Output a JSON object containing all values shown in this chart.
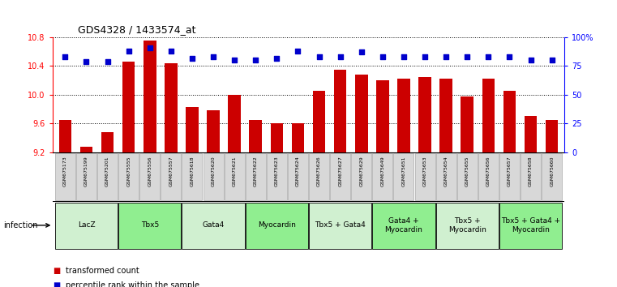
{
  "title": "GDS4328 / 1433574_at",
  "samples": [
    "GSM675173",
    "GSM675199",
    "GSM675201",
    "GSM675555",
    "GSM675556",
    "GSM675557",
    "GSM675618",
    "GSM675620",
    "GSM675621",
    "GSM675622",
    "GSM675623",
    "GSM675624",
    "GSM675626",
    "GSM675627",
    "GSM675629",
    "GSM675649",
    "GSM675651",
    "GSM675653",
    "GSM675654",
    "GSM675655",
    "GSM675656",
    "GSM675657",
    "GSM675658",
    "GSM675660"
  ],
  "bar_values": [
    9.65,
    9.28,
    9.48,
    10.46,
    10.76,
    10.44,
    9.83,
    9.78,
    10.0,
    9.65,
    9.6,
    9.6,
    10.05,
    10.35,
    10.28,
    10.2,
    10.22,
    10.25,
    10.22,
    9.98,
    10.22,
    10.05,
    9.7,
    9.65
  ],
  "percentile_values": [
    83,
    79,
    79,
    88,
    91,
    88,
    82,
    83,
    80,
    80,
    82,
    88,
    83,
    83,
    87,
    83,
    83,
    83,
    83,
    83,
    83,
    83,
    80,
    80
  ],
  "ylim_left": [
    9.2,
    10.8
  ],
  "ylim_right": [
    0,
    100
  ],
  "yticks_left": [
    9.2,
    9.6,
    10.0,
    10.4,
    10.8
  ],
  "yticks_right": [
    0,
    25,
    50,
    75,
    100
  ],
  "ytick_labels_right": [
    "0",
    "25",
    "50",
    "75",
    "100%"
  ],
  "bar_color": "#CC0000",
  "percentile_color": "#0000CC",
  "groups": [
    {
      "label": "LacZ",
      "start": 0,
      "end": 2,
      "color": "#d0f0d0"
    },
    {
      "label": "Tbx5",
      "start": 3,
      "end": 5,
      "color": "#90ee90"
    },
    {
      "label": "Gata4",
      "start": 6,
      "end": 8,
      "color": "#d0f0d0"
    },
    {
      "label": "Myocardin",
      "start": 9,
      "end": 11,
      "color": "#90ee90"
    },
    {
      "label": "Tbx5 + Gata4",
      "start": 12,
      "end": 14,
      "color": "#d0f0d0"
    },
    {
      "label": "Gata4 +\nMyocardin",
      "start": 15,
      "end": 17,
      "color": "#90ee90"
    },
    {
      "label": "Tbx5 +\nMyocardin",
      "start": 18,
      "end": 20,
      "color": "#d0f0d0"
    },
    {
      "label": "Tbx5 + Gata4 +\nMyocardin",
      "start": 21,
      "end": 23,
      "color": "#90ee90"
    }
  ],
  "infection_label": "infection",
  "legend_bar_label": "transformed count",
  "legend_pct_label": "percentile rank within the sample",
  "background_color": "#ffffff",
  "sample_box_color": "#d8d8d8",
  "sample_box_edge": "#aaaaaa"
}
